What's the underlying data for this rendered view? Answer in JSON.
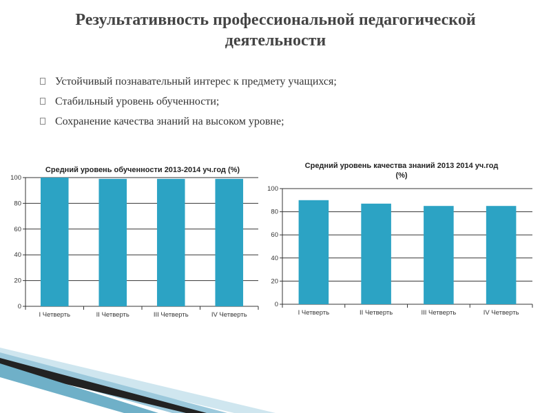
{
  "slide": {
    "title_line1": "Результативность профессиональной педагогической",
    "title_line2": "деятельности",
    "bullets": [
      "Устойчивый познавательный интерес к предмету учащихся;",
      "Стабильный уровень обученности;",
      "Сохранение качества знаний на высоком уровне;"
    ]
  },
  "colors": {
    "bar": "#2ca3c4",
    "grid": "#333333",
    "accent_dark": "#1a1a1a",
    "accent_light": "#b9dbe8"
  },
  "chart_data": [
    {
      "type": "bar",
      "title": "Средний уровень обученности  2013-2014 уч.год (%)",
      "categories": [
        "I Четверть",
        "II Четверть",
        "III Четверть",
        "IV Четверть"
      ],
      "values": [
        100,
        99,
        99,
        99
      ],
      "ylim": [
        0,
        100
      ],
      "yticks": [
        0,
        20,
        40,
        60,
        80,
        100
      ],
      "grid": true,
      "legend": "none"
    },
    {
      "type": "bar",
      "title": "Средний уровень качества знаний  2013  2014 уч.год (%)",
      "title_lines": [
        "Средний уровень качества знаний  2013  2014 уч.год",
        "(%)"
      ],
      "categories": [
        "I Четверть",
        "II Четверть",
        "III Четверть",
        "IV Четверть"
      ],
      "values": [
        90,
        87,
        85,
        85
      ],
      "ylim": [
        0,
        100
      ],
      "yticks": [
        0,
        20,
        40,
        60,
        80,
        100
      ],
      "grid": true,
      "legend": "none"
    }
  ]
}
